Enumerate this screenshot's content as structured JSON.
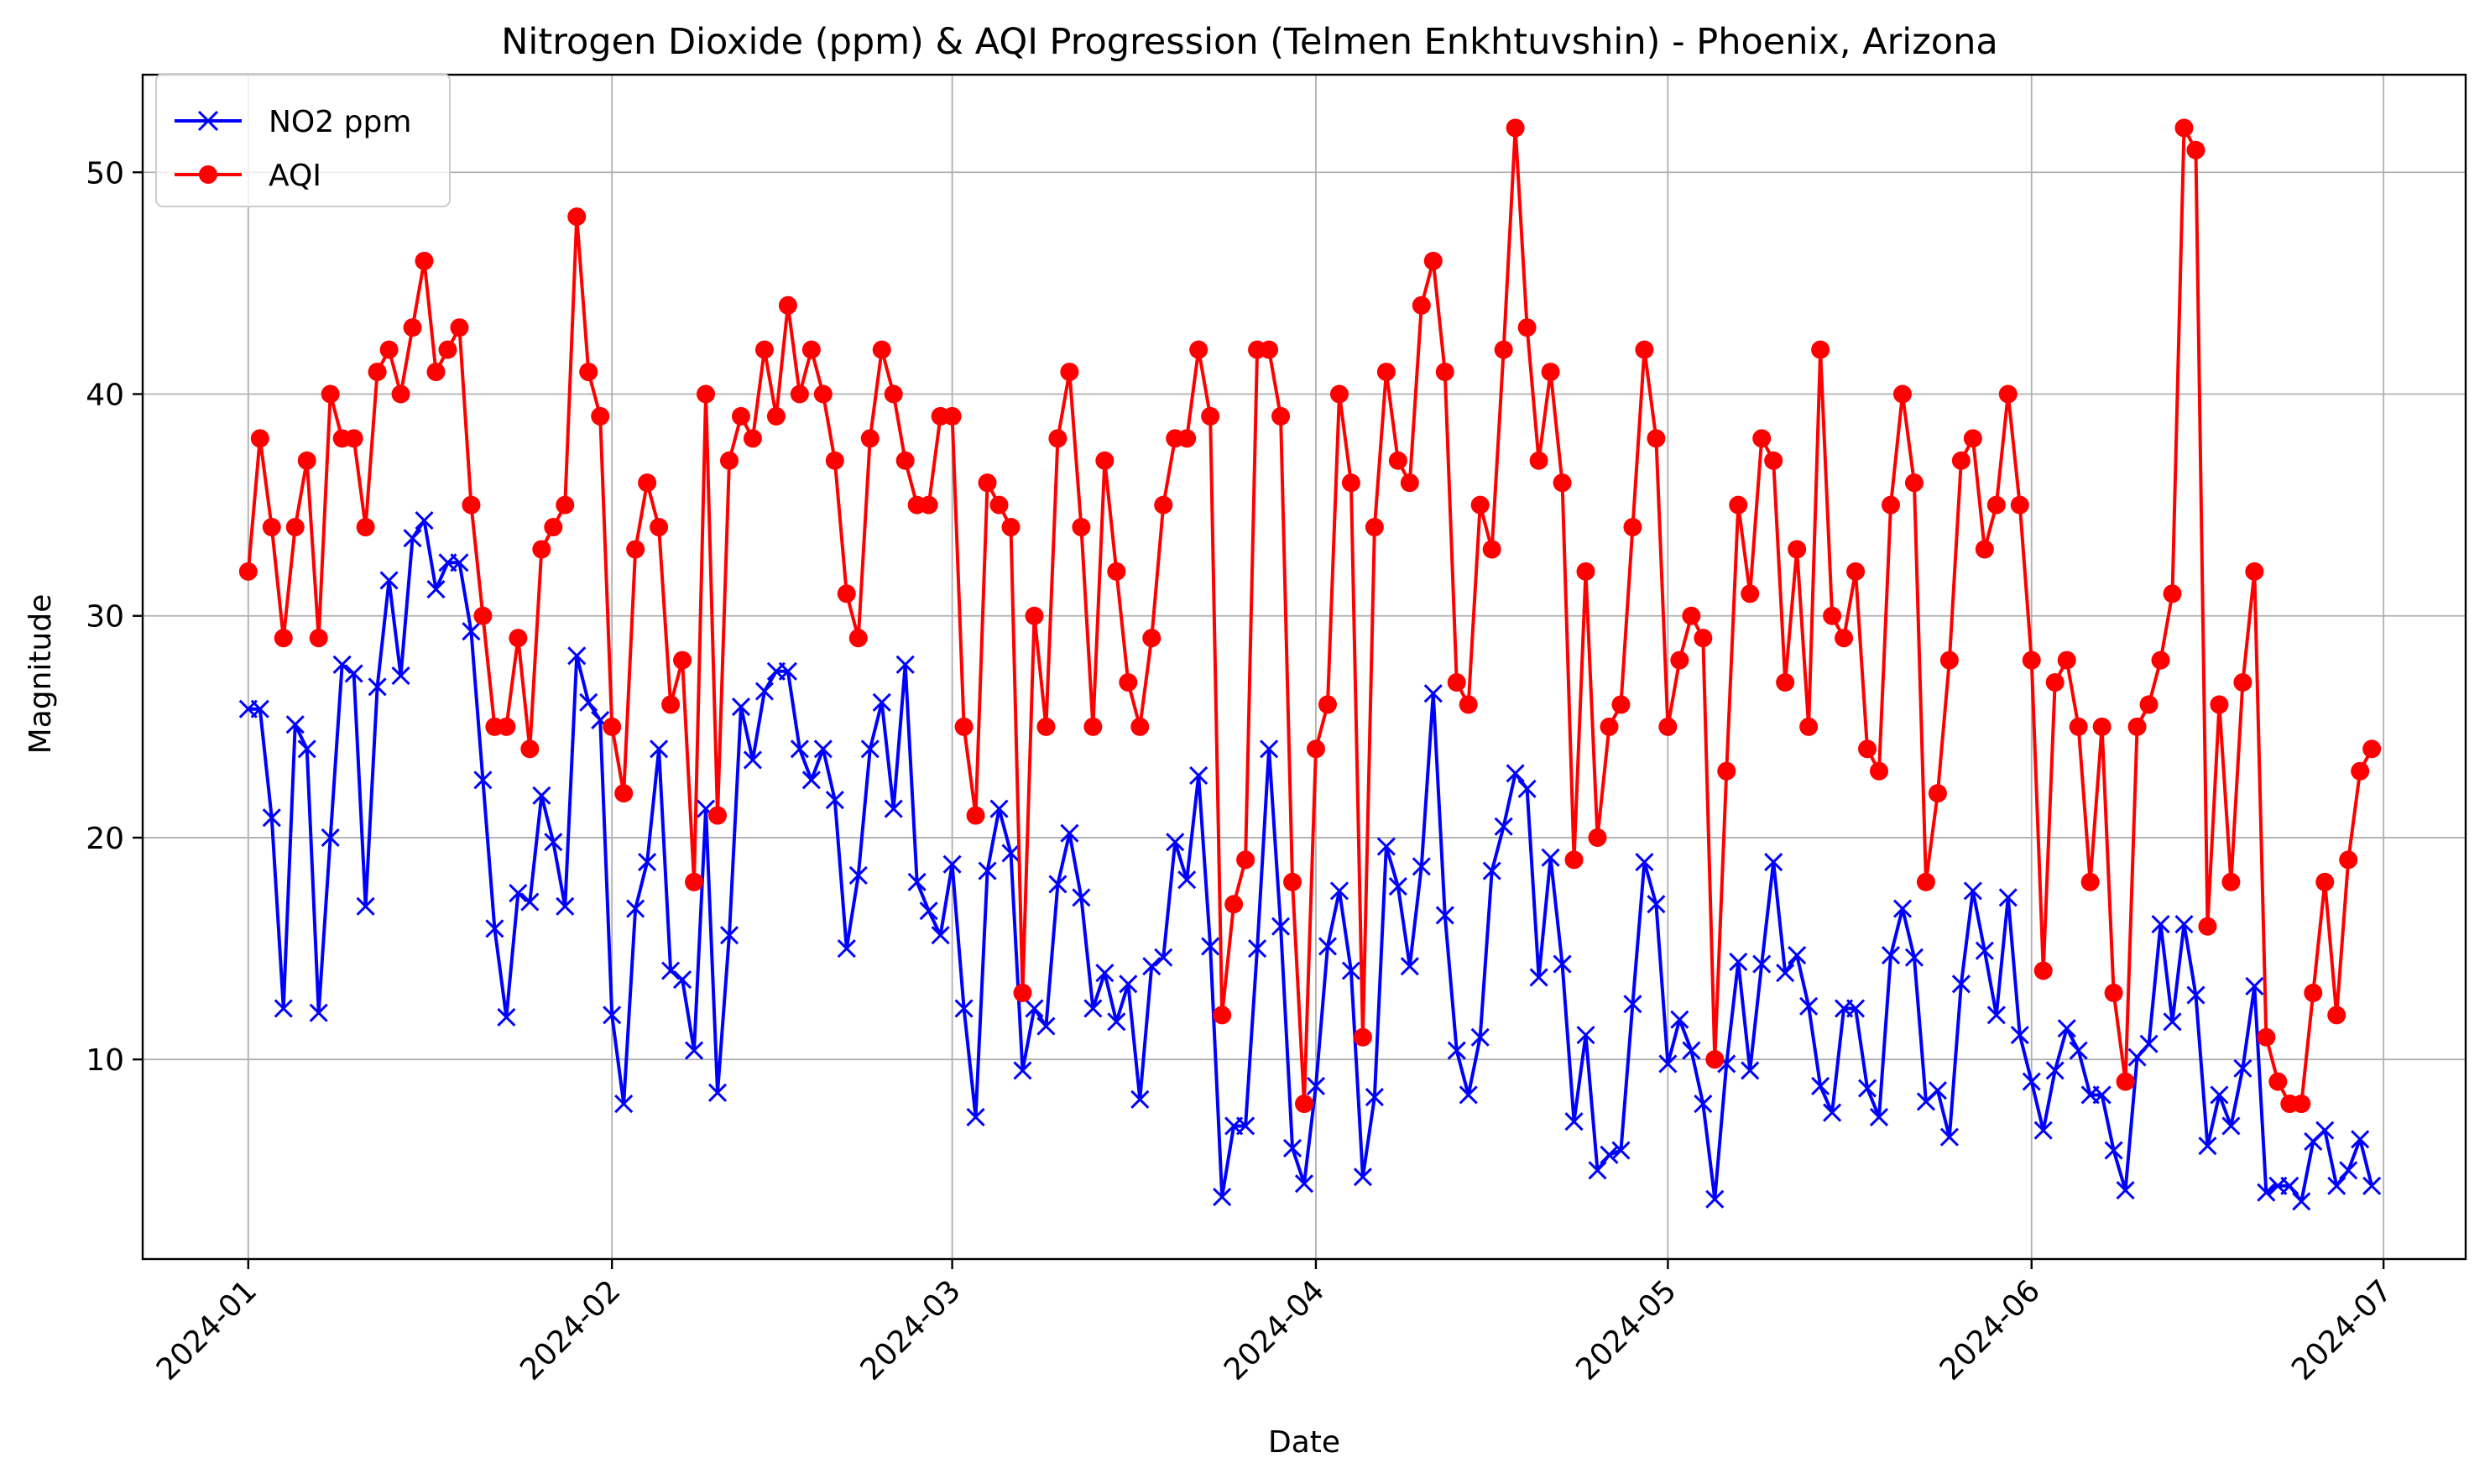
{
  "chart_data": {
    "type": "line",
    "title": "Nitrogen Dioxide (ppm) & AQI Progression (Telmen Enkhtuvshin) - Phoenix, Arizona",
    "xlabel": "Date",
    "ylabel": "Magnitude",
    "x_start": "2024-01-01",
    "x_end": "2024-06-30",
    "xlim": [
      "2023-12-23",
      "2024-07-08"
    ],
    "ylim": [
      1.0,
      54.4
    ],
    "x_ticks": [
      "2024-01",
      "2024-02",
      "2024-03",
      "2024-04",
      "2024-05",
      "2024-06",
      "2024-07"
    ],
    "y_ticks": [
      10,
      20,
      30,
      40,
      50
    ],
    "grid": true,
    "legend_position": "top-left",
    "series": [
      {
        "name": "NO2 ppm",
        "color": "#0000ff",
        "marker": "x",
        "values": [
          25.8,
          25.8,
          20.9,
          12.3,
          25.1,
          24.0,
          12.1,
          20.0,
          27.8,
          27.4,
          16.9,
          26.8,
          31.6,
          27.3,
          33.5,
          34.3,
          31.2,
          32.4,
          32.4,
          29.3,
          22.6,
          15.9,
          11.9,
          17.5,
          17.1,
          21.9,
          19.8,
          16.9,
          28.2,
          26.1,
          25.3,
          12.0,
          8.0,
          16.8,
          18.9,
          24.0,
          14.0,
          13.6,
          10.4,
          21.3,
          8.5,
          15.6,
          25.9,
          23.5,
          26.6,
          27.5,
          27.5,
          24.0,
          22.6,
          24.0,
          21.7,
          15.0,
          18.3,
          24.0,
          26.1,
          21.3,
          27.8,
          18.0,
          16.7,
          15.6,
          18.8,
          12.3,
          7.4,
          18.5,
          21.3,
          19.3,
          9.5,
          12.3,
          11.5,
          17.9,
          20.2,
          17.3,
          12.3,
          13.9,
          11.7,
          13.4,
          8.2,
          14.2,
          14.6,
          19.8,
          18.1,
          22.8,
          15.1,
          3.8,
          7.0,
          7.0,
          15.0,
          24.0,
          16.0,
          6.0,
          4.4,
          8.8,
          15.1,
          17.6,
          14.0,
          4.7,
          8.3,
          19.6,
          17.8,
          14.2,
          18.7,
          26.5,
          16.5,
          10.4,
          8.4,
          11.0,
          18.5,
          20.5,
          22.9,
          22.2,
          13.7,
          19.1,
          14.3,
          7.2,
          11.1,
          5.0,
          5.7,
          5.9,
          12.5,
          18.9,
          17.0,
          9.8,
          11.8,
          10.4,
          8.0,
          3.7,
          9.8,
          14.4,
          9.5,
          14.3,
          18.9,
          13.9,
          14.7,
          12.4,
          8.8,
          7.6,
          12.3,
          12.3,
          8.7,
          7.4,
          14.7,
          16.8,
          14.6,
          8.1,
          8.6,
          6.5,
          13.4,
          17.6,
          14.9,
          12.0,
          17.3,
          11.1,
          9.0,
          6.8,
          9.5,
          11.4,
          10.4,
          8.4,
          8.4,
          5.9,
          4.1,
          10.1,
          10.7,
          16.1,
          11.7,
          16.1,
          12.9,
          6.1,
          8.4,
          7.0,
          9.6,
          13.3,
          4.0,
          4.3,
          4.3,
          3.6,
          6.3,
          6.8,
          4.3,
          5.0,
          6.4,
          4.3
        ]
      },
      {
        "name": "AQI",
        "color": "#ff0000",
        "marker": "o",
        "values": [
          32,
          38,
          34,
          29,
          34,
          37,
          29,
          40,
          38,
          38,
          34,
          41,
          42,
          40,
          43,
          46,
          41,
          42,
          43,
          35,
          30,
          25,
          25,
          29,
          24,
          33,
          34,
          35,
          48,
          41,
          39,
          25,
          22,
          33,
          36,
          34,
          26,
          28,
          18,
          40,
          21,
          37,
          39,
          38,
          42,
          39,
          44,
          40,
          42,
          40,
          37,
          31,
          29,
          38,
          42,
          40,
          37,
          35,
          35,
          39,
          39,
          25,
          21,
          36,
          35,
          34,
          13,
          30,
          25,
          38,
          41,
          34,
          25,
          37,
          32,
          27,
          25,
          29,
          35,
          38,
          38,
          42,
          39,
          12,
          17,
          19,
          42,
          42,
          39,
          18,
          8,
          24,
          26,
          40,
          36,
          11,
          34,
          41,
          37,
          36,
          44,
          46,
          41,
          27,
          26,
          35,
          33,
          42,
          52,
          43,
          37,
          41,
          36,
          19,
          32,
          20,
          25,
          26,
          34,
          42,
          38,
          25,
          28,
          30,
          29,
          10,
          23,
          35,
          31,
          38,
          37,
          27,
          33,
          25,
          42,
          30,
          29,
          32,
          24,
          23,
          35,
          40,
          36,
          18,
          22,
          28,
          37,
          38,
          33,
          35,
          40,
          35,
          28,
          14,
          27,
          28,
          25,
          18,
          25,
          13,
          9,
          25,
          26,
          28,
          31,
          52,
          51,
          16,
          26,
          18,
          27,
          32,
          11,
          9,
          8,
          8,
          13,
          18,
          12,
          19,
          23,
          24
        ]
      }
    ]
  }
}
